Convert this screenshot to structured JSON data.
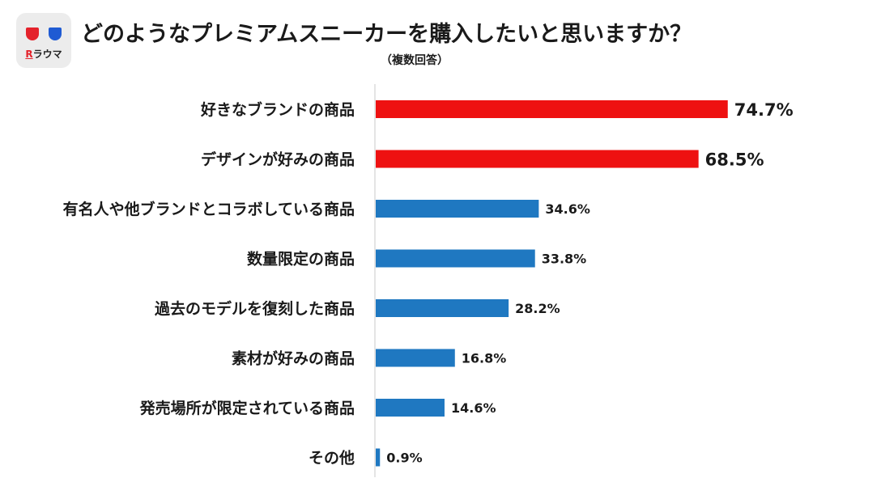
{
  "logo": {
    "r": "R",
    "name": "ラウマ"
  },
  "colors": {
    "highlight": "#ee1111",
    "normal": "#1f78c1"
  },
  "chart_data": {
    "type": "bar",
    "orientation": "horizontal",
    "title": "どのようなプレミアムスニーカーを購入したいと思いますか？",
    "subtitle": "（複数回答）",
    "categories": [
      "好きなブランドの商品",
      "デザインが好みの商品",
      "有名人や他ブランドとコラボしている商品",
      "数量限定の商品",
      "過去のモデルを復刻した商品",
      "素材が好みの商品",
      "発売場所が限定されている商品",
      "その他"
    ],
    "values": [
      74.7,
      68.5,
      34.6,
      33.8,
      28.2,
      16.8,
      14.6,
      0.9
    ],
    "value_labels": [
      "74.7%",
      "68.5%",
      "34.6%",
      "33.8%",
      "28.2%",
      "16.8%",
      "14.6%",
      "0.9%"
    ],
    "highlighted": [
      true,
      true,
      false,
      false,
      false,
      false,
      false,
      false
    ],
    "xlim": [
      0,
      100
    ],
    "unit": "%"
  }
}
